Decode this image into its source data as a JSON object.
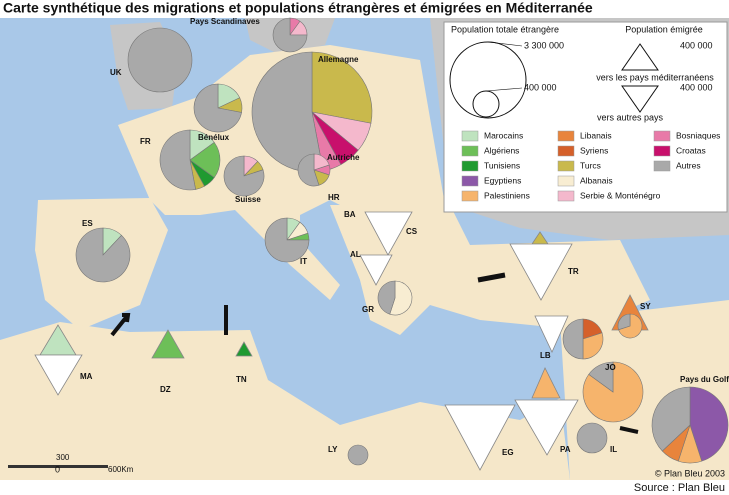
{
  "title": "Carte synthétique des migrations et populations étrangères et émigrées en Méditerranée",
  "legend": {
    "total_title": "Population totale étrangère",
    "total_big": "3 300 000",
    "total_small": "400 000",
    "emig_title": "Population émigrée",
    "emig_med_value": "400 000",
    "emig_med": "vers les pays méditerranéens",
    "emig_other_value": "400 000",
    "emig_other": "vers autres pays",
    "items": [
      {
        "label": "Marocains",
        "color": "#bfe3bf"
      },
      {
        "label": "Algériens",
        "color": "#6dbf58"
      },
      {
        "label": "Tunisiens",
        "color": "#1f9a30"
      },
      {
        "label": "Egyptiens",
        "color": "#8c58a8"
      },
      {
        "label": "Palestiniens",
        "color": "#f6b46c"
      },
      {
        "label": "Libanais",
        "color": "#e8843c"
      },
      {
        "label": "Syriens",
        "color": "#d5602a"
      },
      {
        "label": "Turcs",
        "color": "#c9b94c"
      },
      {
        "label": "Albanais",
        "color": "#f8edd2"
      },
      {
        "label": "Serbie & Monténégro",
        "color": "#f4b8cc"
      },
      {
        "label": "Bosniaques",
        "color": "#e87aa8"
      },
      {
        "label": "Croatas",
        "color": "#c8106c"
      },
      {
        "label": "Autres",
        "color": "#a9a9a9"
      }
    ]
  },
  "labels": [
    "UK",
    "Pays Scandinaves",
    "Allemagne",
    "Bénélux",
    "FR",
    "Autriche",
    "Suisse",
    "HR",
    "BA",
    "CS",
    "ES",
    "IT",
    "AL",
    "TR",
    "GR",
    "SY",
    "MA",
    "DZ",
    "TN",
    "LB",
    "JO",
    "Pays du Golfe",
    "LY",
    "EG",
    "PA",
    "IL"
  ],
  "scale": [
    "0",
    "300",
    "600Km"
  ],
  "credit": "© Plan Bleu 2003",
  "source": "Source : Plan Bleu"
}
